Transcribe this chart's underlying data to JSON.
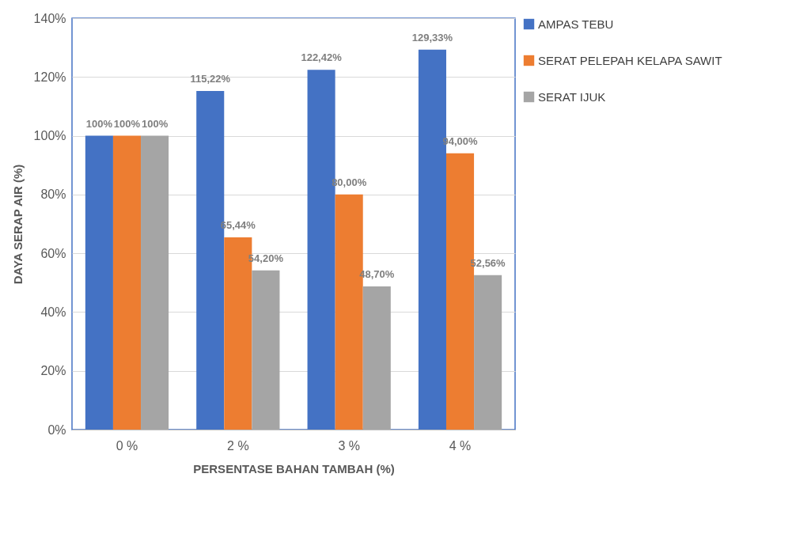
{
  "chart_data": {
    "type": "bar",
    "xlabel": "PERSENTASE BAHAN TAMBAH (%)",
    "ylabel": "DAYA SERAP AIR (%)",
    "categories": [
      "0 %",
      "2 %",
      "3 %",
      "4 %"
    ],
    "series": [
      {
        "name": "AMPAS TEBU",
        "color": "#4472c4",
        "values": [
          100,
          115.22,
          122.42,
          129.33
        ],
        "value_labels": [
          "100%",
          "115,22%",
          "122,42%",
          "129,33%"
        ]
      },
      {
        "name": "SERAT PELEPAH KELAPA SAWIT",
        "color": "#ed7d31",
        "values": [
          100,
          65.44,
          80,
          94
        ],
        "value_labels": [
          "100%",
          "65,44%",
          "80,00%",
          "94,00%"
        ]
      },
      {
        "name": "SERAT IJUK",
        "color": "#a5a5a5",
        "values": [
          100,
          54.2,
          48.7,
          52.56
        ],
        "value_labels": [
          "100%",
          "54,20%",
          "48,70%",
          "52,56%"
        ]
      }
    ],
    "ylim": [
      0,
      140
    ],
    "yticks": [
      {
        "value": 0,
        "label": "0%"
      },
      {
        "value": 20,
        "label": "20%"
      },
      {
        "value": 40,
        "label": "40%"
      },
      {
        "value": 60,
        "label": "60%"
      },
      {
        "value": 80,
        "label": "80%"
      },
      {
        "value": 100,
        "label": "100%"
      },
      {
        "value": 120,
        "label": "120%"
      },
      {
        "value": 140,
        "label": "140%"
      }
    ],
    "grid": "y",
    "legend": "right"
  }
}
